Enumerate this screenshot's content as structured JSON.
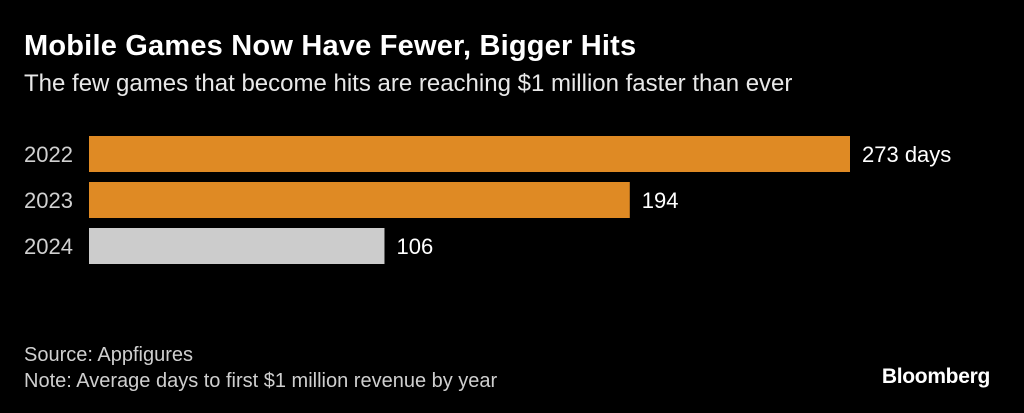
{
  "title": "Mobile Games Now Have Fewer, Bigger Hits",
  "subtitle": "The few games that become hits are reaching $1 million faster than ever",
  "source": "Source: Appfigures",
  "note": "Note: Average days to first $1 million revenue by year",
  "brand": "Bloomberg",
  "colors": {
    "background": "#000000",
    "highlight_bar": "#df8a24",
    "current_bar": "#cccccc",
    "text": "#ffffff"
  },
  "chart_data": {
    "type": "bar",
    "orientation": "horizontal",
    "categories": [
      "2022",
      "2023",
      "2024"
    ],
    "values": [
      273,
      194,
      106
    ],
    "data_labels": [
      "273 days",
      "194",
      "106"
    ],
    "bar_colors": [
      "#df8a24",
      "#df8a24",
      "#cccccc"
    ],
    "xlim": [
      0,
      273
    ],
    "grid": false,
    "legend": "none"
  }
}
